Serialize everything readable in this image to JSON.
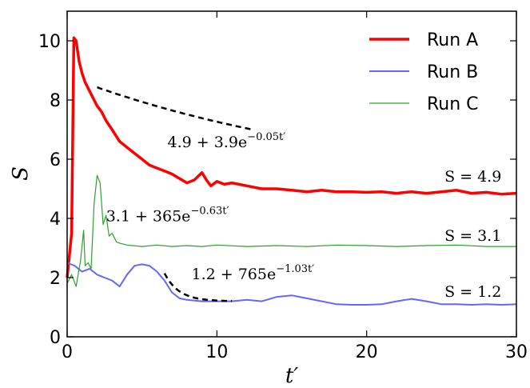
{
  "chart_data": {
    "type": "line",
    "xlabel": "t′",
    "ylabel": "S",
    "xlim": [
      0,
      30
    ],
    "ylim": [
      0,
      11
    ],
    "xticks": [
      0,
      10,
      20,
      30
    ],
    "yticks": [
      0,
      2,
      4,
      6,
      8,
      10
    ],
    "xtick_labels": [
      "0",
      "10",
      "20",
      "30"
    ],
    "ytick_labels": [
      "0",
      "2",
      "4",
      "6",
      "8",
      "10"
    ],
    "grid": false,
    "legend_position": "top-right",
    "series": [
      {
        "name": "Run A",
        "color": "#ff0000",
        "x": [
          0,
          0.3,
          0.45,
          0.6,
          0.8,
          1.0,
          1.2,
          1.5,
          1.8,
          2.0,
          2.3,
          2.6,
          3.0,
          3.5,
          4.0,
          4.5,
          5.0,
          5.5,
          6.0,
          6.5,
          7.0,
          7.5,
          8.0,
          8.5,
          9.0,
          9.3,
          9.6,
          10.0,
          10.5,
          11.0,
          12.0,
          13.0,
          14.0,
          15.0,
          16.0,
          17.0,
          18.0,
          19.0,
          20.0,
          21.0,
          22.0,
          23.0,
          24.0,
          25.0,
          26.0,
          27.0,
          28.0,
          29.0,
          30.0
        ],
        "y": [
          2.0,
          3.5,
          10.1,
          10.0,
          9.3,
          8.9,
          8.6,
          8.3,
          8.0,
          7.8,
          7.6,
          7.3,
          7.0,
          6.6,
          6.4,
          6.2,
          6.0,
          5.8,
          5.7,
          5.6,
          5.5,
          5.35,
          5.2,
          5.3,
          5.55,
          5.3,
          5.1,
          5.25,
          5.15,
          5.2,
          5.1,
          5.0,
          5.0,
          4.95,
          4.9,
          4.95,
          4.9,
          4.9,
          4.88,
          4.9,
          4.85,
          4.9,
          4.85,
          4.9,
          4.95,
          4.85,
          4.88,
          4.82,
          4.85
        ]
      },
      {
        "name": "Run B",
        "color": "#6666ff",
        "x": [
          0,
          0.5,
          1.0,
          1.5,
          2.0,
          2.5,
          3.0,
          3.5,
          4.0,
          4.5,
          5.0,
          5.5,
          6.0,
          6.5,
          7.0,
          7.5,
          8.0,
          9.0,
          10.0,
          11.0,
          12.0,
          13.0,
          14.0,
          15.0,
          16.0,
          17.0,
          18.0,
          19.0,
          20.0,
          21.0,
          22.0,
          23.0,
          24.0,
          25.0,
          26.0,
          27.0,
          28.0,
          29.0,
          30.0
        ],
        "y": [
          2.5,
          2.4,
          2.2,
          2.3,
          2.1,
          2.0,
          1.9,
          1.7,
          2.1,
          2.4,
          2.45,
          2.4,
          2.2,
          1.9,
          1.5,
          1.3,
          1.25,
          1.2,
          1.2,
          1.2,
          1.25,
          1.2,
          1.35,
          1.4,
          1.3,
          1.2,
          1.1,
          1.08,
          1.08,
          1.1,
          1.2,
          1.28,
          1.2,
          1.1,
          1.1,
          1.08,
          1.1,
          1.08,
          1.1
        ]
      },
      {
        "name": "Run C",
        "color": "#2ca02c",
        "x": [
          0,
          0.3,
          0.6,
          0.9,
          1.1,
          1.2,
          1.4,
          1.6,
          1.8,
          2.0,
          2.2,
          2.4,
          2.6,
          2.8,
          3.0,
          3.3,
          3.6,
          4.0,
          5.0,
          6.0,
          7.0,
          8.0,
          9.0,
          10.0,
          12.0,
          14.0,
          16.0,
          18.0,
          20.0,
          22.0,
          24.0,
          26.0,
          28.0,
          30.0
        ],
        "y": [
          1.8,
          2.1,
          1.7,
          2.6,
          3.6,
          2.4,
          2.5,
          2.3,
          4.5,
          5.45,
          5.2,
          3.8,
          4.1,
          3.4,
          3.5,
          3.2,
          3.15,
          3.1,
          3.05,
          3.1,
          3.05,
          3.08,
          3.05,
          3.1,
          3.05,
          3.08,
          3.05,
          3.1,
          3.08,
          3.05,
          3.08,
          3.1,
          3.05,
          3.05
        ]
      }
    ],
    "fits": [
      {
        "a": 4.9,
        "b": 3.9,
        "k": 0.05,
        "x_start": 2.0,
        "x_end": 12.5
      },
      {
        "a": 3.1,
        "b": 365,
        "k": 0.63,
        "x_start": 2.0,
        "x_end": 3.8
      },
      {
        "a": 1.2,
        "b": 765,
        "k": 1.03,
        "x_start": 6.5,
        "x_end": 11.0
      }
    ],
    "annotations": [
      {
        "base": "4.9 + 3.9e",
        "exp": "−0.05t′",
        "x": 6.7,
        "y": 6.4
      },
      {
        "base": "3.1 + 365e",
        "exp": "−0.63t′",
        "x": 2.6,
        "y": 3.9
      },
      {
        "base": "1.2 + 765e",
        "exp": "−1.03t′",
        "x": 8.3,
        "y": 1.95
      },
      {
        "text": "S = 4.9",
        "x": 25.2,
        "y": 5.25
      },
      {
        "text": "S = 3.1",
        "x": 25.2,
        "y": 3.25
      },
      {
        "text": "S = 1.2",
        "x": 25.2,
        "y": 1.35
      }
    ]
  }
}
